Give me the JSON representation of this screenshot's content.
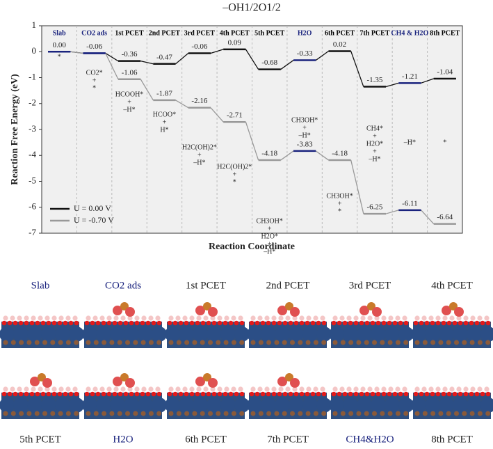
{
  "chart_data": {
    "type": "step_energy",
    "title": "–OH1/2O1/2",
    "ylabel": "Reaction Free Energy (eV)",
    "xlabel": "Reaction Coordinate",
    "categories": [
      "Slab",
      "CO2 ads",
      "1st PCET",
      "2nd PCET",
      "3rd PCET",
      "4th PCET",
      "5th PCET",
      "H2O",
      "6th PCET",
      "7th PCET",
      "CH4 & H2O",
      "8th PCET"
    ],
    "category_colors": [
      "#1a237e",
      "#1a237e",
      "#000000",
      "#000000",
      "#000000",
      "#000000",
      "#000000",
      "#1a237e",
      "#000000",
      "#000000",
      "#1a237e",
      "#000000"
    ],
    "series": [
      {
        "name": "U = 0.00 V",
        "color": "#111111",
        "values": [
          0.0,
          -0.06,
          -0.36,
          -0.47,
          -0.06,
          0.09,
          -0.68,
          -0.33,
          0.02,
          -1.35,
          -1.21,
          -1.04
        ],
        "value_labels": [
          "0.00",
          "-0.06",
          "-0.36",
          "-0.47",
          "-0.06",
          "0.09",
          "-0.68",
          "-0.33",
          "0.02",
          "-1.35",
          "-1.21",
          "-1.04"
        ]
      },
      {
        "name": "U = -0.70 V",
        "color": "#999999",
        "values": [
          0.0,
          -0.06,
          -1.06,
          -1.87,
          -2.16,
          -2.71,
          -4.18,
          -3.83,
          -4.18,
          -6.25,
          -6.11,
          -6.64
        ],
        "value_labels": [
          "0.00",
          "-0.06",
          "-1.06",
          "-1.87",
          "-2.16",
          "-2.71",
          "-4.18",
          "-3.83",
          "-4.18",
          "-6.25",
          "-6.11",
          "-6.64"
        ]
      }
    ],
    "annotations": [
      [
        "*"
      ],
      [
        "CO2*",
        "+",
        "*"
      ],
      [
        "HCOOH*",
        "+",
        "–H*"
      ],
      [
        "HCOO*",
        "+",
        "H*"
      ],
      [
        "H2C(OH)2*",
        "+",
        "–H*"
      ],
      [
        "H2C(OH)2*",
        "+",
        "*"
      ],
      [
        "CH3OH*",
        "+",
        "H2O*",
        "+",
        "–H*"
      ],
      [
        "CH3OH*",
        "+",
        "–H*"
      ],
      [
        "CH3OH*",
        "+",
        "*"
      ],
      [
        "CH4*",
        "+",
        "H2O*",
        "+",
        "–H*"
      ],
      [
        "–H*"
      ],
      [
        "*"
      ]
    ],
    "ylim": [
      -7,
      1
    ],
    "yticks": [
      -7,
      -6,
      -5,
      -4,
      -3,
      -2,
      -1,
      0,
      1
    ],
    "legend": "lower left",
    "grid": true
  },
  "structures": {
    "top_labels": [
      "Slab",
      "CO2 ads",
      "1st PCET",
      "2nd PCET",
      "3rd PCET",
      "4th PCET"
    ],
    "top_colors": [
      "#1a237e",
      "#1a237e",
      "#222",
      "#222",
      "#222",
      "#222"
    ],
    "bottom_labels": [
      "5th PCET",
      "H2O",
      "6th PCET",
      "7th PCET",
      "CH4&H2O",
      "8th PCET"
    ],
    "bottom_colors": [
      "#222",
      "#1a237e",
      "#222",
      "#222",
      "#1a237e",
      "#222"
    ]
  }
}
